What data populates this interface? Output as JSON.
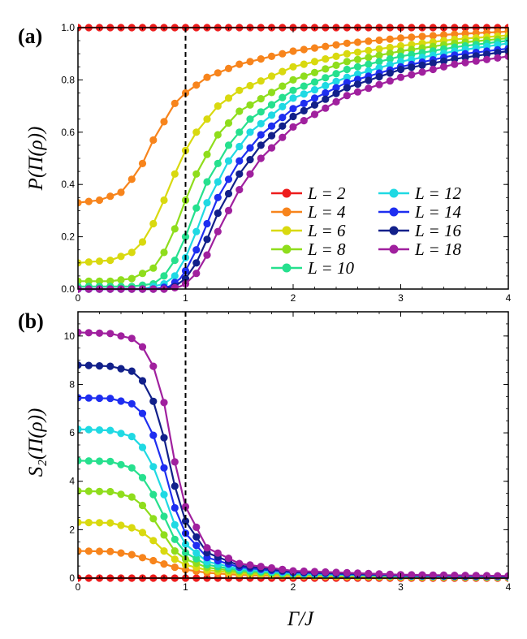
{
  "figure": {
    "xlabel": "Γ/J",
    "colors": {
      "L2": "#ee1c1c",
      "L4": "#f7841c",
      "L6": "#d9d90f",
      "L8": "#8fdd1c",
      "L10": "#26e08e",
      "L12": "#1fd9e3",
      "L14": "#1e2ef0",
      "L16": "#12208a",
      "L18": "#a0209e"
    }
  },
  "chart_data": [
    {
      "type": "line",
      "panel_label": "(a)",
      "ylabel": "P(Π(ρ))",
      "xlim": [
        0,
        4
      ],
      "ylim": [
        0,
        1
      ],
      "xticks": [
        0,
        1,
        2,
        3,
        4
      ],
      "yticks": [
        0.0,
        0.2,
        0.4,
        0.6,
        0.8,
        1.0
      ],
      "ytick_labels": [
        "0.0",
        "0.2",
        "0.4",
        "0.6",
        "0.8",
        "1.0"
      ],
      "vline": {
        "x": 1,
        "style": "dashed"
      },
      "legend": {
        "position": "center-right",
        "columns": 2
      },
      "series": [
        {
          "name": "L = 2",
          "values": [
            [
              0,
              1
            ],
            [
              4,
              1
            ]
          ]
        },
        {
          "name": "L = 4",
          "values": [
            [
              0,
              0.33
            ],
            [
              0.2,
              0.34
            ],
            [
              0.4,
              0.37
            ],
            [
              0.5,
              0.42
            ],
            [
              0.6,
              0.48
            ],
            [
              0.7,
              0.57
            ],
            [
              0.8,
              0.64
            ],
            [
              0.9,
              0.71
            ],
            [
              1.0,
              0.75
            ],
            [
              1.2,
              0.81
            ],
            [
              1.5,
              0.86
            ],
            [
              2.0,
              0.91
            ],
            [
              2.5,
              0.94
            ],
            [
              3.0,
              0.96
            ],
            [
              3.5,
              0.975
            ],
            [
              4.0,
              0.985
            ]
          ]
        },
        {
          "name": "L = 6",
          "values": [
            [
              0,
              0.1
            ],
            [
              0.3,
              0.11
            ],
            [
              0.5,
              0.14
            ],
            [
              0.6,
              0.18
            ],
            [
              0.7,
              0.25
            ],
            [
              0.8,
              0.34
            ],
            [
              0.9,
              0.44
            ],
            [
              1.0,
              0.53
            ],
            [
              1.1,
              0.6
            ],
            [
              1.3,
              0.7
            ],
            [
              1.5,
              0.76
            ],
            [
              2.0,
              0.85
            ],
            [
              2.5,
              0.9
            ],
            [
              3.0,
              0.93
            ],
            [
              3.5,
              0.955
            ],
            [
              4.0,
              0.97
            ]
          ]
        },
        {
          "name": "L = 8",
          "values": [
            [
              0,
              0.03
            ],
            [
              0.3,
              0.03
            ],
            [
              0.5,
              0.04
            ],
            [
              0.7,
              0.08
            ],
            [
              0.8,
              0.14
            ],
            [
              0.9,
              0.23
            ],
            [
              1.0,
              0.34
            ],
            [
              1.1,
              0.44
            ],
            [
              1.3,
              0.59
            ],
            [
              1.5,
              0.68
            ],
            [
              2.0,
              0.8
            ],
            [
              2.5,
              0.87
            ],
            [
              3.0,
              0.91
            ],
            [
              3.5,
              0.94
            ],
            [
              4.0,
              0.96
            ]
          ]
        },
        {
          "name": "L = 10",
          "values": [
            [
              0,
              0.01
            ],
            [
              0.5,
              0.01
            ],
            [
              0.7,
              0.02
            ],
            [
              0.8,
              0.05
            ],
            [
              0.9,
              0.11
            ],
            [
              1.0,
              0.2
            ],
            [
              1.1,
              0.31
            ],
            [
              1.2,
              0.41
            ],
            [
              1.4,
              0.55
            ],
            [
              1.6,
              0.65
            ],
            [
              2.0,
              0.76
            ],
            [
              2.5,
              0.84
            ],
            [
              3.0,
              0.89
            ],
            [
              3.5,
              0.925
            ],
            [
              4.0,
              0.95
            ]
          ]
        },
        {
          "name": "L = 12",
          "values": [
            [
              0,
              0.0
            ],
            [
              0.6,
              0.0
            ],
            [
              0.8,
              0.02
            ],
            [
              0.9,
              0.05
            ],
            [
              1.0,
              0.12
            ],
            [
              1.1,
              0.22
            ],
            [
              1.2,
              0.33
            ],
            [
              1.4,
              0.49
            ],
            [
              1.6,
              0.6
            ],
            [
              2.0,
              0.73
            ],
            [
              2.5,
              0.81
            ],
            [
              3.0,
              0.87
            ],
            [
              3.5,
              0.91
            ],
            [
              4.0,
              0.94
            ]
          ]
        },
        {
          "name": "L = 14",
          "values": [
            [
              0,
              0.0
            ],
            [
              0.7,
              0.0
            ],
            [
              0.85,
              0.01
            ],
            [
              0.95,
              0.04
            ],
            [
              1.0,
              0.07
            ],
            [
              1.1,
              0.15
            ],
            [
              1.2,
              0.25
            ],
            [
              1.3,
              0.35
            ],
            [
              1.5,
              0.49
            ],
            [
              1.7,
              0.59
            ],
            [
              2.0,
              0.69
            ],
            [
              2.5,
              0.79
            ],
            [
              3.0,
              0.85
            ],
            [
              3.5,
              0.895
            ],
            [
              4.0,
              0.92
            ]
          ]
        },
        {
          "name": "L = 16",
          "values": [
            [
              0,
              0.0
            ],
            [
              0.8,
              0.0
            ],
            [
              0.9,
              0.01
            ],
            [
              1.0,
              0.04
            ],
            [
              1.1,
              0.1
            ],
            [
              1.2,
              0.19
            ],
            [
              1.3,
              0.29
            ],
            [
              1.5,
              0.44
            ],
            [
              1.7,
              0.55
            ],
            [
              2.0,
              0.66
            ],
            [
              2.5,
              0.77
            ],
            [
              3.0,
              0.84
            ],
            [
              3.5,
              0.88
            ],
            [
              4.0,
              0.91
            ]
          ]
        },
        {
          "name": "L = 18",
          "values": [
            [
              0,
              0.0
            ],
            [
              0.85,
              0.0
            ],
            [
              0.95,
              0.01
            ],
            [
              1.0,
              0.02
            ],
            [
              1.1,
              0.06
            ],
            [
              1.2,
              0.13
            ],
            [
              1.3,
              0.22
            ],
            [
              1.5,
              0.38
            ],
            [
              1.7,
              0.5
            ],
            [
              2.0,
              0.62
            ],
            [
              2.5,
              0.74
            ],
            [
              3.0,
              0.81
            ],
            [
              3.5,
              0.86
            ],
            [
              4.0,
              0.89
            ]
          ]
        }
      ]
    },
    {
      "type": "line",
      "panel_label": "(b)",
      "ylabel": "S₂(Π(ρ))",
      "xlim": [
        0,
        4
      ],
      "ylim": [
        0,
        11
      ],
      "xticks": [
        0,
        1,
        2,
        3,
        4
      ],
      "yticks": [
        0,
        2,
        4,
        6,
        8,
        10
      ],
      "ytick_labels": [
        "0",
        "2",
        "4",
        "6",
        "8",
        "10"
      ],
      "vline": {
        "x": 1,
        "style": "dashed"
      },
      "series": [
        {
          "name": "L = 2",
          "values": [
            [
              0,
              0.0
            ],
            [
              4,
              0.0
            ]
          ]
        },
        {
          "name": "L = 4",
          "values": [
            [
              0,
              1.12
            ],
            [
              0.3,
              1.1
            ],
            [
              0.5,
              0.97
            ],
            [
              0.7,
              0.72
            ],
            [
              0.9,
              0.45
            ],
            [
              1.0,
              0.35
            ],
            [
              1.2,
              0.22
            ],
            [
              1.5,
              0.13
            ],
            [
              2.0,
              0.07
            ],
            [
              3.0,
              0.03
            ],
            [
              4.0,
              0.02
            ]
          ]
        },
        {
          "name": "L = 6",
          "values": [
            [
              0,
              2.3
            ],
            [
              0.3,
              2.28
            ],
            [
              0.5,
              2.08
            ],
            [
              0.6,
              1.88
            ],
            [
              0.7,
              1.55
            ],
            [
              0.8,
              1.12
            ],
            [
              0.9,
              0.78
            ],
            [
              1.0,
              0.55
            ],
            [
              1.2,
              0.33
            ],
            [
              1.5,
              0.2
            ],
            [
              2.0,
              0.11
            ],
            [
              3.0,
              0.05
            ],
            [
              4.0,
              0.03
            ]
          ]
        },
        {
          "name": "L = 8",
          "values": [
            [
              0,
              3.6
            ],
            [
              0.3,
              3.57
            ],
            [
              0.5,
              3.35
            ],
            [
              0.6,
              3.0
            ],
            [
              0.7,
              2.45
            ],
            [
              0.8,
              1.78
            ],
            [
              0.9,
              1.12
            ],
            [
              1.0,
              0.78
            ],
            [
              1.2,
              0.44
            ],
            [
              1.5,
              0.26
            ],
            [
              2.0,
              0.14
            ],
            [
              3.0,
              0.07
            ],
            [
              4.0,
              0.04
            ]
          ]
        },
        {
          "name": "L = 10",
          "values": [
            [
              0,
              4.85
            ],
            [
              0.3,
              4.82
            ],
            [
              0.5,
              4.55
            ],
            [
              0.6,
              4.15
            ],
            [
              0.7,
              3.45
            ],
            [
              0.8,
              2.55
            ],
            [
              0.9,
              1.6
            ],
            [
              1.0,
              1.05
            ],
            [
              1.2,
              0.55
            ],
            [
              1.5,
              0.32
            ],
            [
              2.0,
              0.17
            ],
            [
              3.0,
              0.08
            ],
            [
              4.0,
              0.05
            ]
          ]
        },
        {
          "name": "L = 12",
          "values": [
            [
              0,
              6.15
            ],
            [
              0.3,
              6.1
            ],
            [
              0.5,
              5.85
            ],
            [
              0.6,
              5.4
            ],
            [
              0.7,
              4.6
            ],
            [
              0.8,
              3.45
            ],
            [
              0.9,
              2.2
            ],
            [
              1.0,
              1.4
            ],
            [
              1.2,
              0.68
            ],
            [
              1.5,
              0.38
            ],
            [
              2.0,
              0.2
            ],
            [
              3.0,
              0.09
            ],
            [
              4.0,
              0.06
            ]
          ]
        },
        {
          "name": "L = 14",
          "values": [
            [
              0,
              7.45
            ],
            [
              0.3,
              7.42
            ],
            [
              0.5,
              7.2
            ],
            [
              0.6,
              6.8
            ],
            [
              0.7,
              5.9
            ],
            [
              0.8,
              4.55
            ],
            [
              0.9,
              2.9
            ],
            [
              1.0,
              1.85
            ],
            [
              1.2,
              0.85
            ],
            [
              1.5,
              0.45
            ],
            [
              2.0,
              0.23
            ],
            [
              3.0,
              0.1
            ],
            [
              4.0,
              0.07
            ]
          ]
        },
        {
          "name": "L = 16",
          "values": [
            [
              0,
              8.8
            ],
            [
              0.3,
              8.75
            ],
            [
              0.5,
              8.55
            ],
            [
              0.6,
              8.15
            ],
            [
              0.7,
              7.3
            ],
            [
              0.8,
              5.8
            ],
            [
              0.9,
              3.8
            ],
            [
              1.0,
              2.35
            ],
            [
              1.2,
              1.05
            ],
            [
              1.5,
              0.52
            ],
            [
              2.0,
              0.26
            ],
            [
              3.0,
              0.12
            ],
            [
              4.0,
              0.08
            ]
          ]
        },
        {
          "name": "L = 18",
          "values": [
            [
              0,
              10.15
            ],
            [
              0.3,
              10.1
            ],
            [
              0.5,
              9.9
            ],
            [
              0.6,
              9.55
            ],
            [
              0.7,
              8.75
            ],
            [
              0.8,
              7.25
            ],
            [
              0.9,
              4.8
            ],
            [
              1.0,
              2.95
            ],
            [
              1.2,
              1.25
            ],
            [
              1.5,
              0.6
            ],
            [
              2.0,
              0.3
            ],
            [
              3.0,
              0.14
            ],
            [
              4.0,
              0.09
            ]
          ]
        }
      ]
    }
  ]
}
